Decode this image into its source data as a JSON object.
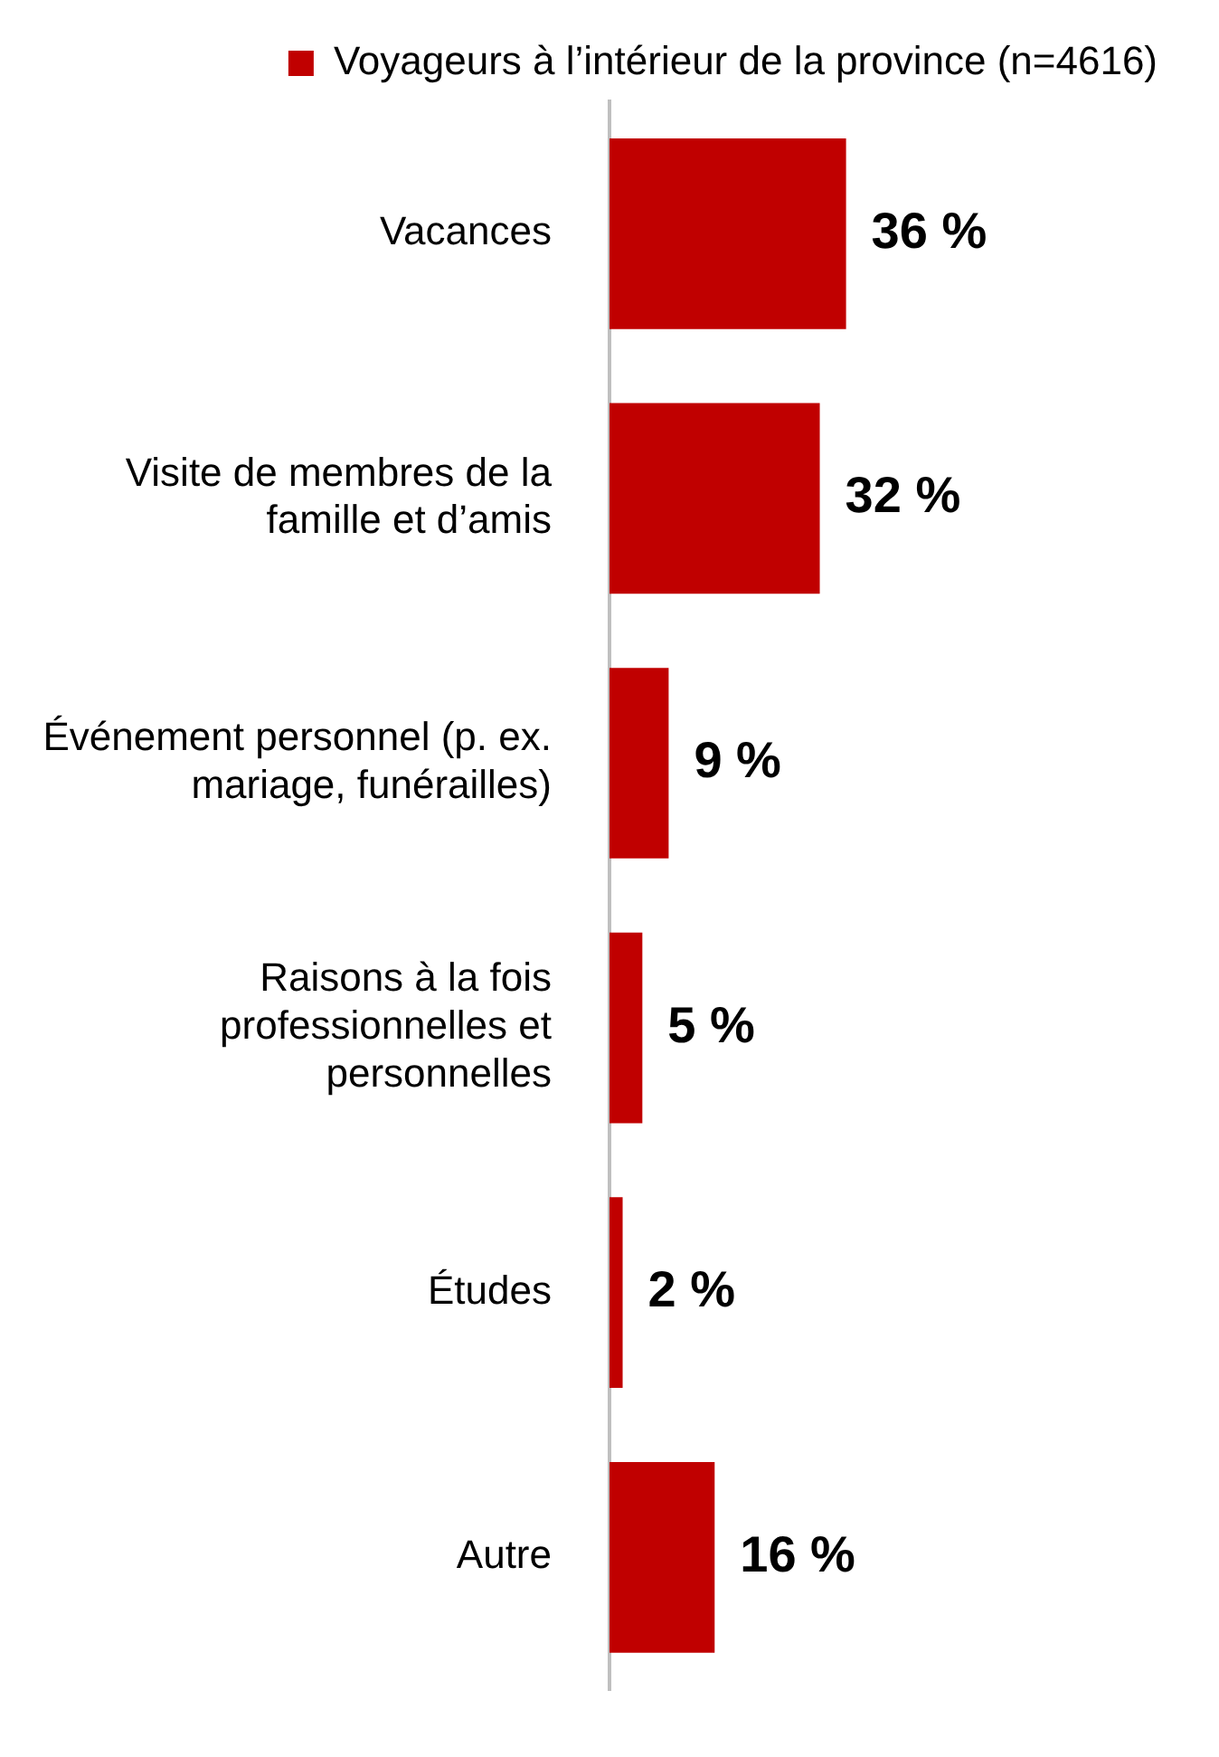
{
  "chart_data": {
    "type": "bar",
    "orientation": "horizontal",
    "categories": [
      "Vacances",
      "Visite de membres de la famille et d’amis",
      "Événement personnel (p. ex. mariage, funérailles)",
      "Raisons à la fois professionnelles et personnelles",
      "Études",
      "Autre"
    ],
    "series": [
      {
        "name": "Voyageurs à l’intérieur de la province (n=4616)",
        "color": "#c00000",
        "values": [
          36,
          32,
          9,
          5,
          2,
          16
        ]
      }
    ],
    "data_labels": true,
    "value_labels": [
      "36 %",
      "32 %",
      "9 %",
      "5 %",
      "2 %",
      "16 %"
    ],
    "legend": "top right"
  }
}
